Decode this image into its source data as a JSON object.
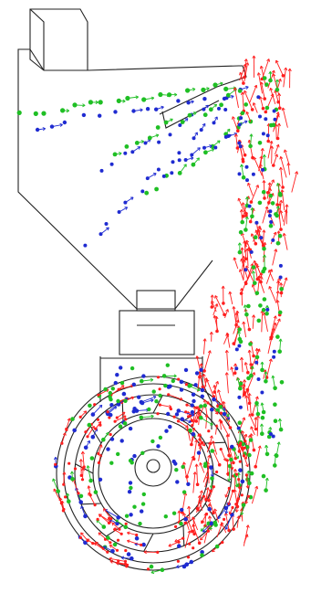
{
  "figure": {
    "kind": "particle-trajectory-diagram",
    "colors": {
      "outline": "#222222",
      "blue": "#1f2bd1",
      "green": "#1fbf24",
      "red": "#ff1e1e",
      "background": "#ffffff"
    },
    "particle_groups": [
      {
        "color_key": "blue"
      },
      {
        "color_key": "green"
      },
      {
        "color_key": "red"
      }
    ]
  }
}
